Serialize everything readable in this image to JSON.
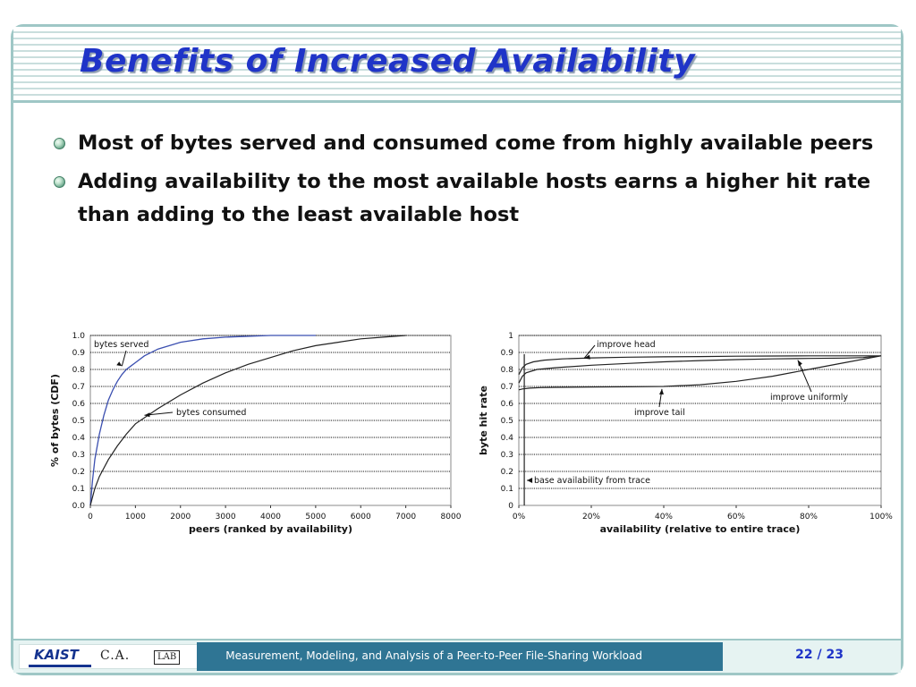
{
  "slide": {
    "title": "Benefits of Increased Availability",
    "bullets": [
      "Most of bytes served and consumed come from highly available peers",
      "Adding availability to the most available hosts earns a higher hit rate than adding to the least available host"
    ]
  },
  "chart_data": [
    {
      "type": "line",
      "xlabel": "peers (ranked by availability)",
      "ylabel": "% of bytes (CDF)",
      "xlim": [
        0,
        8000
      ],
      "ylim": [
        0,
        1.0
      ],
      "x_ticks": [
        "0",
        "1000",
        "2000",
        "3000",
        "4000",
        "5000",
        "6000",
        "7000",
        "8000"
      ],
      "y_ticks": [
        "0.0",
        "0.1",
        "0.2",
        "0.3",
        "0.4",
        "0.5",
        "0.6",
        "0.7",
        "0.8",
        "0.9",
        "1.0"
      ],
      "grid": true,
      "series": [
        {
          "name": "bytes served",
          "color": "#3b4fb0",
          "x": [
            0,
            50,
            100,
            200,
            300,
            400,
            500,
            600,
            700,
            800,
            900,
            1000,
            1200,
            1500,
            2000,
            2500,
            3000,
            4000,
            5000
          ],
          "y": [
            0,
            0.15,
            0.27,
            0.42,
            0.53,
            0.62,
            0.68,
            0.73,
            0.77,
            0.8,
            0.82,
            0.84,
            0.88,
            0.92,
            0.96,
            0.98,
            0.99,
            1.0,
            1.0
          ]
        },
        {
          "name": "bytes consumed",
          "color": "#222222",
          "x": [
            0,
            50,
            100,
            200,
            400,
            600,
            800,
            1000,
            1500,
            2000,
            2500,
            3000,
            3500,
            4000,
            4500,
            5000,
            5500,
            6000,
            6500,
            7000
          ],
          "y": [
            0,
            0.05,
            0.1,
            0.17,
            0.27,
            0.35,
            0.42,
            0.48,
            0.57,
            0.65,
            0.72,
            0.78,
            0.83,
            0.87,
            0.91,
            0.94,
            0.96,
            0.98,
            0.99,
            1.0
          ]
        }
      ]
    },
    {
      "type": "line",
      "xlabel": "availability (relative to entire trace)",
      "ylabel": "byte hit rate",
      "xlim": [
        0,
        100
      ],
      "ylim": [
        0,
        1
      ],
      "x_ticks": [
        "0%",
        "20%",
        "40%",
        "60%",
        "80%",
        "100%"
      ],
      "y_ticks": [
        "0",
        "0.1",
        "0.2",
        "0.3",
        "0.4",
        "0.5",
        "0.6",
        "0.7",
        "0.8",
        "0.9",
        "1"
      ],
      "grid": true,
      "series": [
        {
          "name": "improve head",
          "color": "#222222",
          "x": [
            0,
            1,
            2,
            4,
            7,
            12,
            20,
            30,
            40,
            50,
            60,
            70,
            80,
            90,
            100
          ],
          "y": [
            0.77,
            0.81,
            0.83,
            0.845,
            0.855,
            0.862,
            0.868,
            0.872,
            0.874,
            0.876,
            0.878,
            0.879,
            0.88,
            0.88,
            0.88
          ]
        },
        {
          "name": "improve uniformly",
          "color": "#222222",
          "x": [
            0,
            1,
            2,
            5,
            10,
            20,
            30,
            40,
            50,
            60,
            70,
            80,
            90,
            95,
            100
          ],
          "y": [
            0.72,
            0.76,
            0.78,
            0.8,
            0.81,
            0.825,
            0.835,
            0.845,
            0.852,
            0.858,
            0.862,
            0.865,
            0.867,
            0.87,
            0.88
          ]
        },
        {
          "name": "improve tail",
          "color": "#222222",
          "x": [
            0,
            1,
            3,
            6,
            10,
            20,
            30,
            40,
            50,
            60,
            70,
            80,
            90,
            100
          ],
          "y": [
            0.68,
            0.685,
            0.69,
            0.693,
            0.695,
            0.697,
            0.698,
            0.7,
            0.71,
            0.73,
            0.76,
            0.8,
            0.84,
            0.88
          ]
        },
        {
          "name": "base availability from trace",
          "color": "#222222",
          "x": [
            1.5,
            1.5
          ],
          "y": [
            0,
            0.89
          ]
        }
      ],
      "annotations": [
        "improve head",
        "improve uniformly",
        "improve tail",
        "base availability from trace"
      ]
    }
  ],
  "footer": {
    "logo_text": "KAIST",
    "lab_text": "C.A.",
    "lab_box_text": "LAB",
    "presentation_title": "Measurement, Modeling, and Analysis of a Peer-to-Peer File-Sharing Workload",
    "page_number": "22",
    "page_separator": "/",
    "page_total": "23"
  }
}
